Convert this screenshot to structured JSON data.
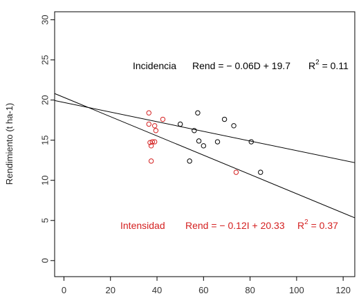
{
  "chart_data": {
    "type": "scatter",
    "title": "",
    "xlabel": "",
    "ylabel": "Rendimiento (t ha-1)",
    "xlim": [
      -4,
      125
    ],
    "ylim": [
      -2,
      31
    ],
    "x_ticks": [
      0,
      20,
      40,
      60,
      80,
      100,
      120
    ],
    "y_ticks": [
      0,
      5,
      10,
      15,
      20,
      25,
      30
    ],
    "grid": false,
    "legend": "none",
    "series": [
      {
        "color": "#000000",
        "marker": "open-circle",
        "points": [
          {
            "x": 50,
            "y": 17.0
          },
          {
            "x": 54,
            "y": 12.4
          },
          {
            "x": 56,
            "y": 16.2
          },
          {
            "x": 57.5,
            "y": 18.4
          },
          {
            "x": 58,
            "y": 14.9
          },
          {
            "x": 60,
            "y": 14.3
          },
          {
            "x": 66,
            "y": 14.8
          },
          {
            "x": 69,
            "y": 17.6
          },
          {
            "x": 73,
            "y": 16.8
          },
          {
            "x": 80.5,
            "y": 14.8
          },
          {
            "x": 84.5,
            "y": 11.0
          }
        ],
        "fit": {
          "slope": -0.06,
          "intercept": 19.7
        }
      },
      {
        "color": "#d42020",
        "marker": "open-circle",
        "points": [
          {
            "x": 36.5,
            "y": 18.4
          },
          {
            "x": 36.5,
            "y": 17.0
          },
          {
            "x": 37,
            "y": 14.7
          },
          {
            "x": 37.5,
            "y": 12.4
          },
          {
            "x": 37.5,
            "y": 14.3
          },
          {
            "x": 38,
            "y": 14.8
          },
          {
            "x": 39,
            "y": 16.8
          },
          {
            "x": 39,
            "y": 14.8
          },
          {
            "x": 39.5,
            "y": 16.2
          },
          {
            "x": 42.5,
            "y": 17.6
          },
          {
            "x": 74,
            "y": 11.0
          }
        ],
        "fit": {
          "slope": -0.12,
          "intercept": 20.33
        }
      }
    ],
    "annotations": [
      {
        "text": "Incidencia",
        "color": "#000000"
      },
      {
        "text": "Rend = − 0.06D + 19.7",
        "color": "#000000"
      },
      {
        "text": "R",
        "sup": "2",
        "rest": " = 0.11",
        "color": "#000000"
      },
      {
        "text": "Intensidad",
        "color": "#d42020"
      },
      {
        "text": "Rend = − 0.12I + 20.33",
        "color": "#d42020"
      },
      {
        "text": "R",
        "sup": "2",
        "rest": " = 0.37",
        "color": "#d42020"
      }
    ]
  }
}
